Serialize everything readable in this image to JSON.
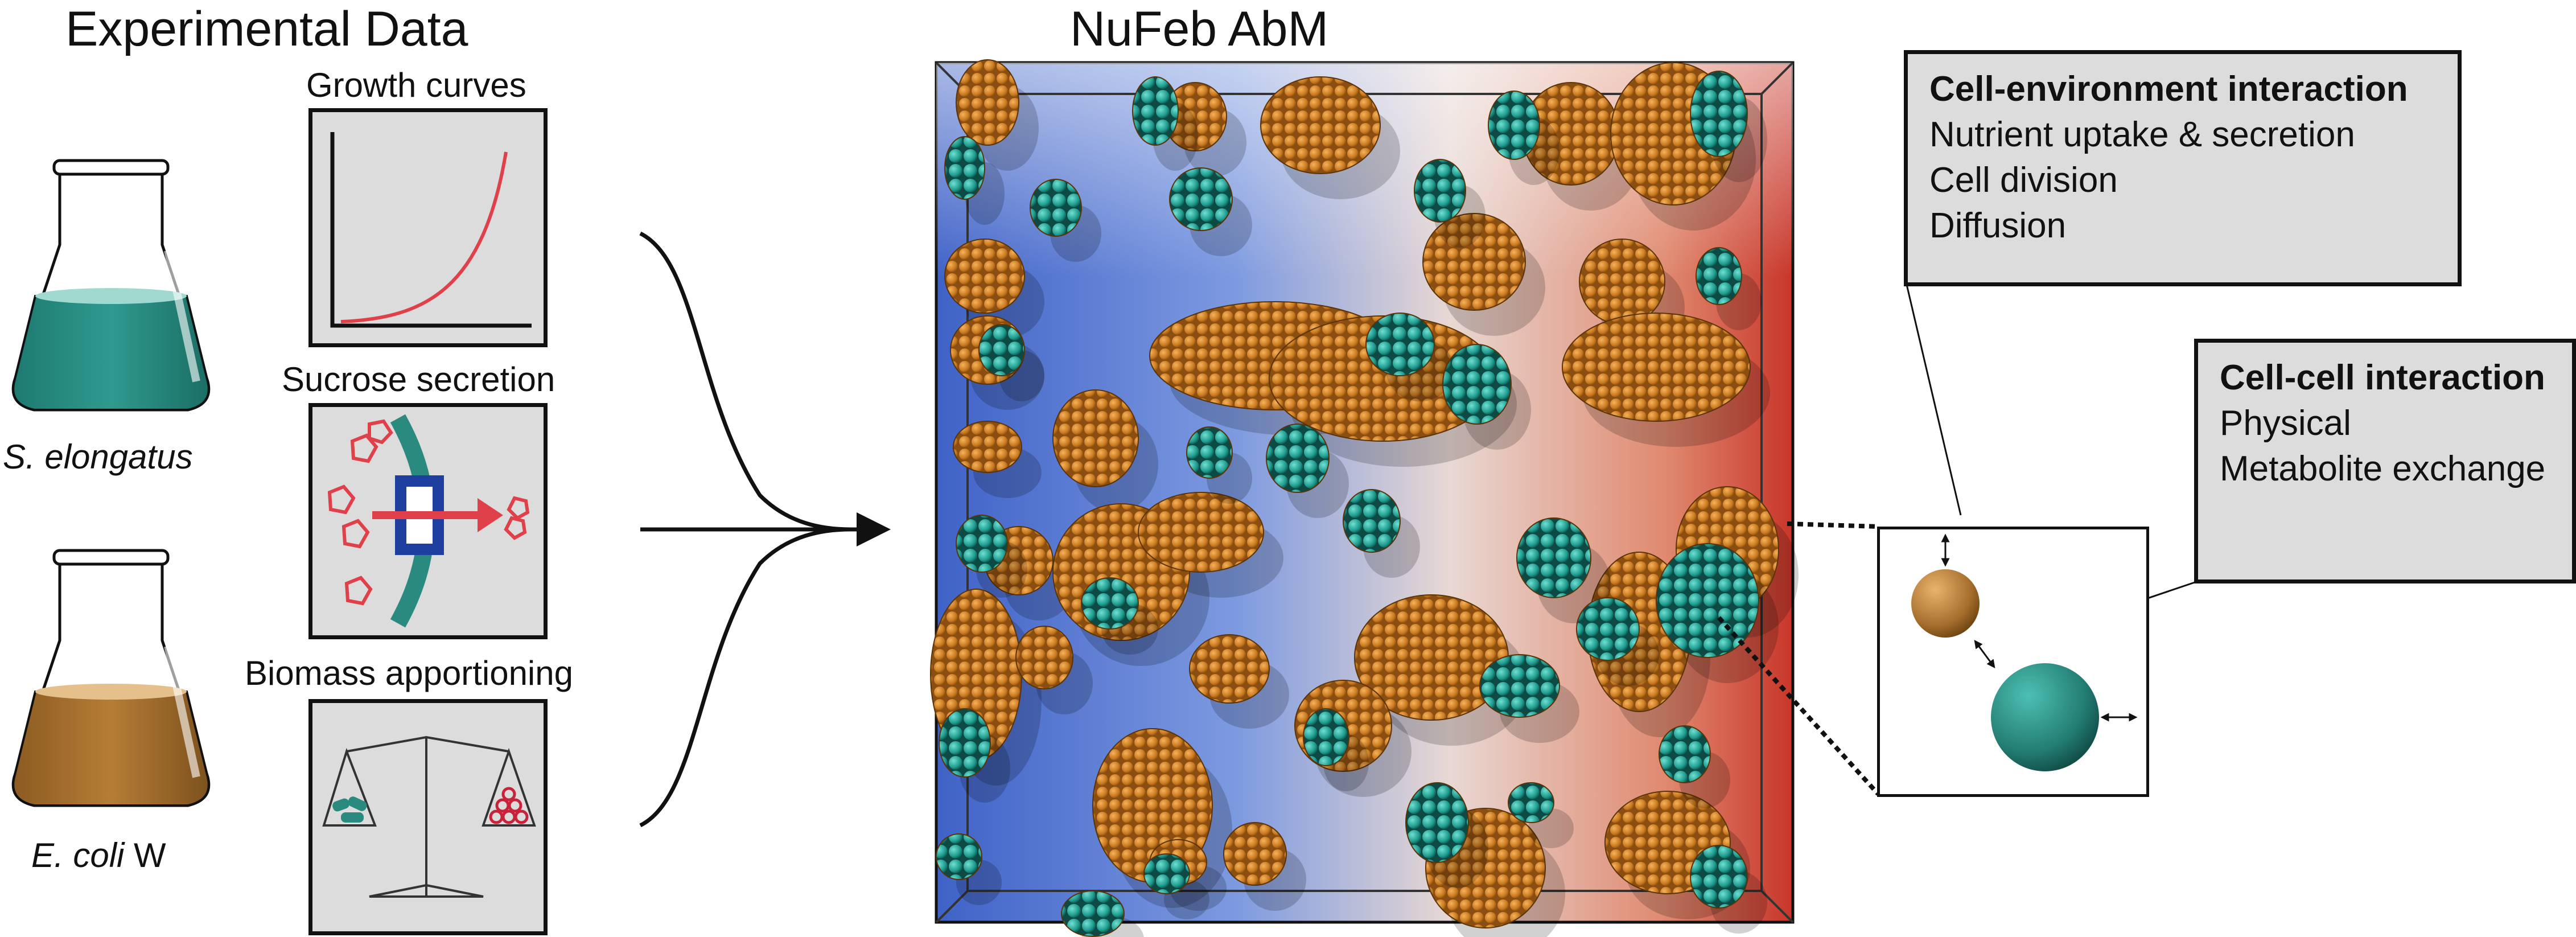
{
  "titles": {
    "experimental": "Experimental Data",
    "model": "NuFeb AbM"
  },
  "flasks": [
    {
      "label_species": "S. elongatus",
      "label_suffix": "",
      "liquid_color": "#2a8a80"
    },
    {
      "label_species": "E. coli",
      "label_suffix": " W",
      "liquid_color": "#a9732e"
    }
  ],
  "data_panels": [
    {
      "title": "Growth curves",
      "icon": "growth-curve-icon"
    },
    {
      "title": "Sucrose secretion",
      "icon": "sucrose-secretion-icon"
    },
    {
      "title": "Biomass apportioning",
      "icon": "balance-scale-icon"
    }
  ],
  "interaction_boxes": {
    "cell_environment": {
      "heading": "Cell-environment interaction",
      "items": [
        "Nutrient uptake & secretion",
        "Cell division",
        "Diffusion"
      ]
    },
    "cell_cell": {
      "heading": "Cell-cell interaction",
      "items": [
        "Physical",
        "Metabolite exchange"
      ]
    }
  },
  "colors": {
    "orange_cell": "#c8781f",
    "teal_cell": "#1f9a8e",
    "red_line": "#e0404a",
    "blue_transporter": "#1f3fa0",
    "panel_bg": "#dcdcdc"
  }
}
